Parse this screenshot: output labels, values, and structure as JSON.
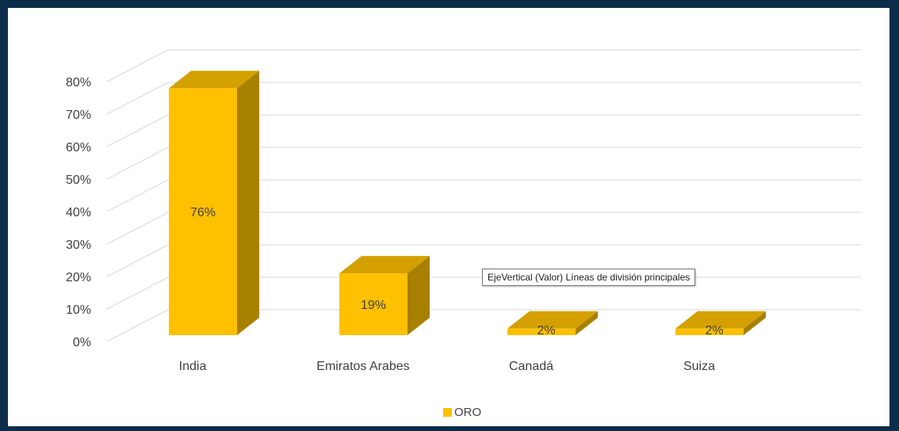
{
  "chart_data": {
    "type": "bar",
    "style": "3d-column",
    "categories": [
      "India",
      "Emiratos Arabes",
      "Canadá",
      "Suiza"
    ],
    "series": [
      {
        "name": "ORO",
        "values": [
          76,
          19,
          2,
          2
        ],
        "labels": [
          "76%",
          "19%",
          "2%",
          "2%"
        ]
      }
    ],
    "ylim": [
      0,
      80
    ],
    "yticks": [
      "0%",
      "10%",
      "20%",
      "30%",
      "40%",
      "50%",
      "60%",
      "70%",
      "80%"
    ],
    "grid": true,
    "legend": "bottom",
    "colors": {
      "bar_front": "#FFC000",
      "bar_top": "#D4A000",
      "bar_side": "#A88000",
      "gridline": "#D9D9D9"
    }
  },
  "tooltip": {
    "text": "EjeVertical (Valor)  Líneas de división principales"
  },
  "legend": {
    "label": "ORO"
  },
  "colors": {
    "frame": "#0B2D4A",
    "background": "#FFFFFF"
  }
}
